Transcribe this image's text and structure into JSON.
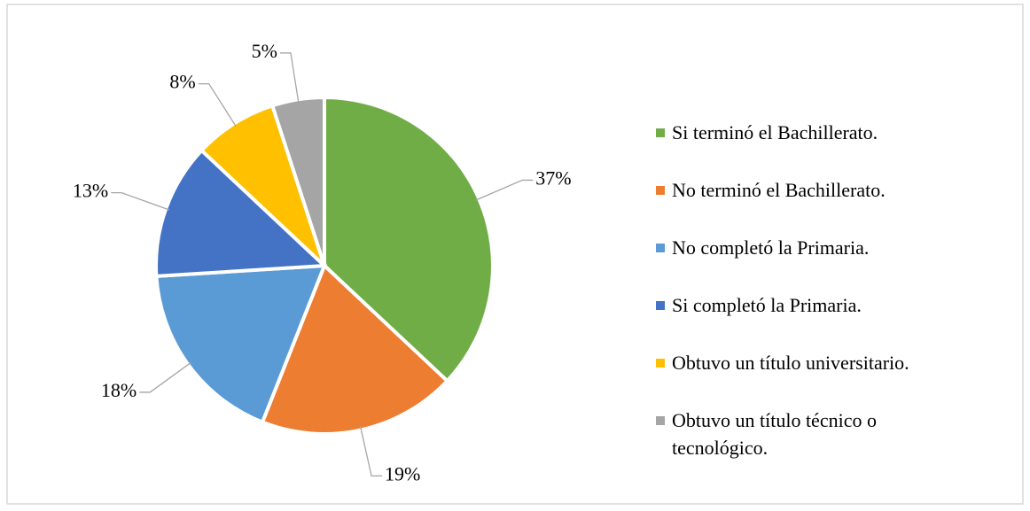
{
  "chart_data": {
    "type": "pie",
    "categories": [
      "Si terminó el Bachillerato.",
      "No terminó el Bachillerato.",
      "No completó la Primaria.",
      "Si completó la Primaria.",
      "Obtuvo un título universitario.",
      "Obtuvo un título técnico o tecnológico."
    ],
    "values": [
      37,
      19,
      18,
      13,
      8,
      5
    ],
    "value_labels": [
      "37%",
      "19%",
      "18%",
      "13%",
      "8%",
      "5%"
    ],
    "colors": [
      "#70ad47",
      "#ed7d31",
      "#5b9bd5",
      "#4472c4",
      "#ffc000",
      "#a5a5a5"
    ],
    "legend": "right"
  }
}
